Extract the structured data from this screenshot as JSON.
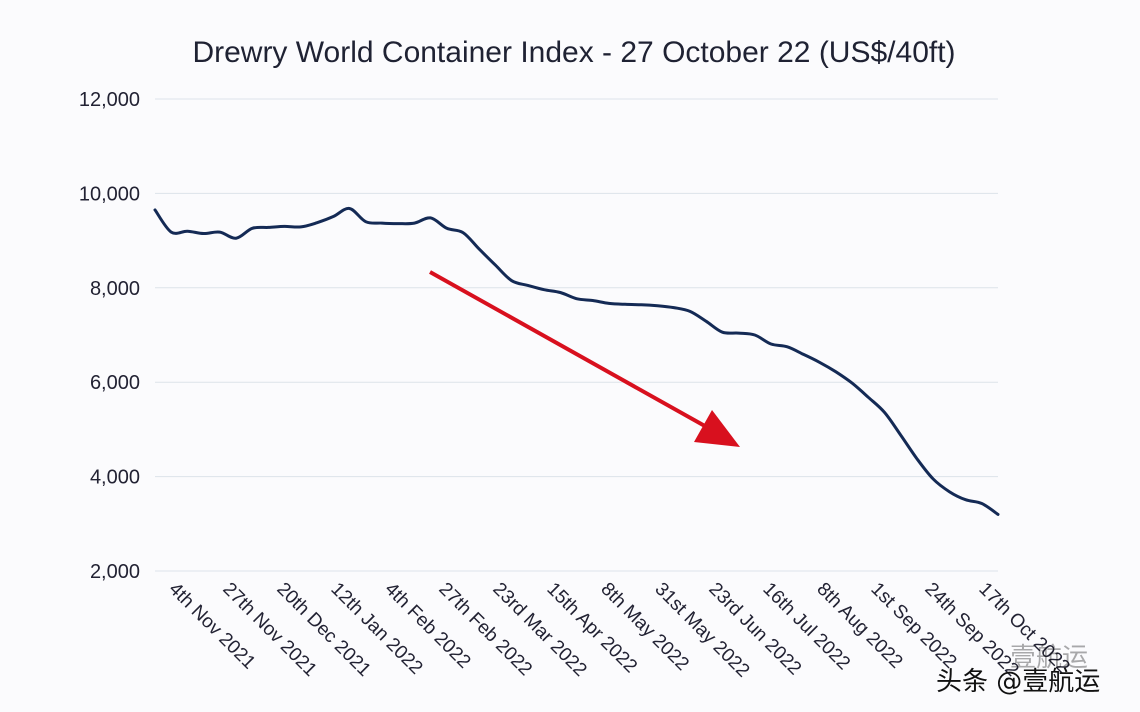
{
  "chart_data": {
    "type": "line",
    "title": "Drewry World Container Index - 27 October 22 (US$/40ft)",
    "xlabel": "",
    "ylabel": "",
    "ylim": [
      2000,
      12000
    ],
    "yticks": [
      2000,
      4000,
      6000,
      8000,
      10000,
      12000
    ],
    "ytick_labels": [
      "2,000",
      "4,000",
      "6,000",
      "8,000",
      "10,000",
      "12,000"
    ],
    "x": [
      "28th Oct 2021",
      "4th Nov 2021",
      "11th Nov 2021",
      "18th Nov 2021",
      "25th Nov 2021",
      "2nd Dec 2021",
      "9th Dec 2021",
      "16th Dec 2021",
      "23rd Dec 2021",
      "30th Dec 2021",
      "6th Jan 2022",
      "13th Jan 2022",
      "20th Jan 2022",
      "27th Jan 2022",
      "3rd Feb 2022",
      "10th Feb 2022",
      "17th Feb 2022",
      "24th Feb 2022",
      "3rd Mar 2022",
      "10th Mar 2022",
      "17th Mar 2022",
      "24th Mar 2022",
      "31st Mar 2022",
      "7th Apr 2022",
      "14th Apr 2022",
      "21st Apr 2022",
      "28th Apr 2022",
      "5th May 2022",
      "12th May 2022",
      "19th May 2022",
      "26th May 2022",
      "2nd Jun 2022",
      "9th Jun 2022",
      "16th Jun 2022",
      "23rd Jun 2022",
      "30th Jun 2022",
      "7th Jul 2022",
      "14th Jul 2022",
      "21st Jul 2022",
      "28th Jul 2022",
      "4th Aug 2022",
      "11th Aug 2022",
      "18th Aug 2022",
      "25th Aug 2022",
      "1st Sep 2022",
      "8th Sep 2022",
      "15th Sep 2022",
      "22nd Sep 2022",
      "29th Sep 2022",
      "6th Oct 2022",
      "13th Oct 2022",
      "20th Oct 2022",
      "27th Oct 2022"
    ],
    "series": [
      {
        "name": "",
        "color": "#142a55",
        "values": [
          9650,
          9180,
          9200,
          9150,
          9180,
          9050,
          9260,
          9280,
          9300,
          9290,
          9380,
          9510,
          9680,
          9400,
          9370,
          9360,
          9370,
          9480,
          9260,
          9170,
          8820,
          8480,
          8150,
          8050,
          7960,
          7900,
          7770,
          7730,
          7670,
          7650,
          7640,
          7620,
          7580,
          7500,
          7290,
          7060,
          7040,
          7000,
          6810,
          6750,
          6590,
          6420,
          6220,
          5980,
          5680,
          5360,
          4880,
          4380,
          3950,
          3680,
          3510,
          3430,
          3200
        ]
      }
    ],
    "xtick_labels": [
      "4th Nov 2021",
      "27th Nov 2021",
      "20th Dec 2021",
      "12th Jan 2022",
      "4th Feb 2022",
      "27th Feb 2022",
      "23rd Mar 2022",
      "15th Apr 2022",
      "8th May 2022",
      "31st May 2022",
      "23rd Jun 2022",
      "16th Jul 2022",
      "8th Aug 2022",
      "1st Sep 2022",
      "24th Sep 2022",
      "17th Oct 2022"
    ],
    "annotations": [
      {
        "type": "arrow",
        "color": "#d8101e",
        "meaning": "downward trend"
      }
    ],
    "grid": true,
    "legend": "none"
  },
  "watermark": {
    "text": "头条 @壹航运",
    "faded_text": "壹航运"
  }
}
